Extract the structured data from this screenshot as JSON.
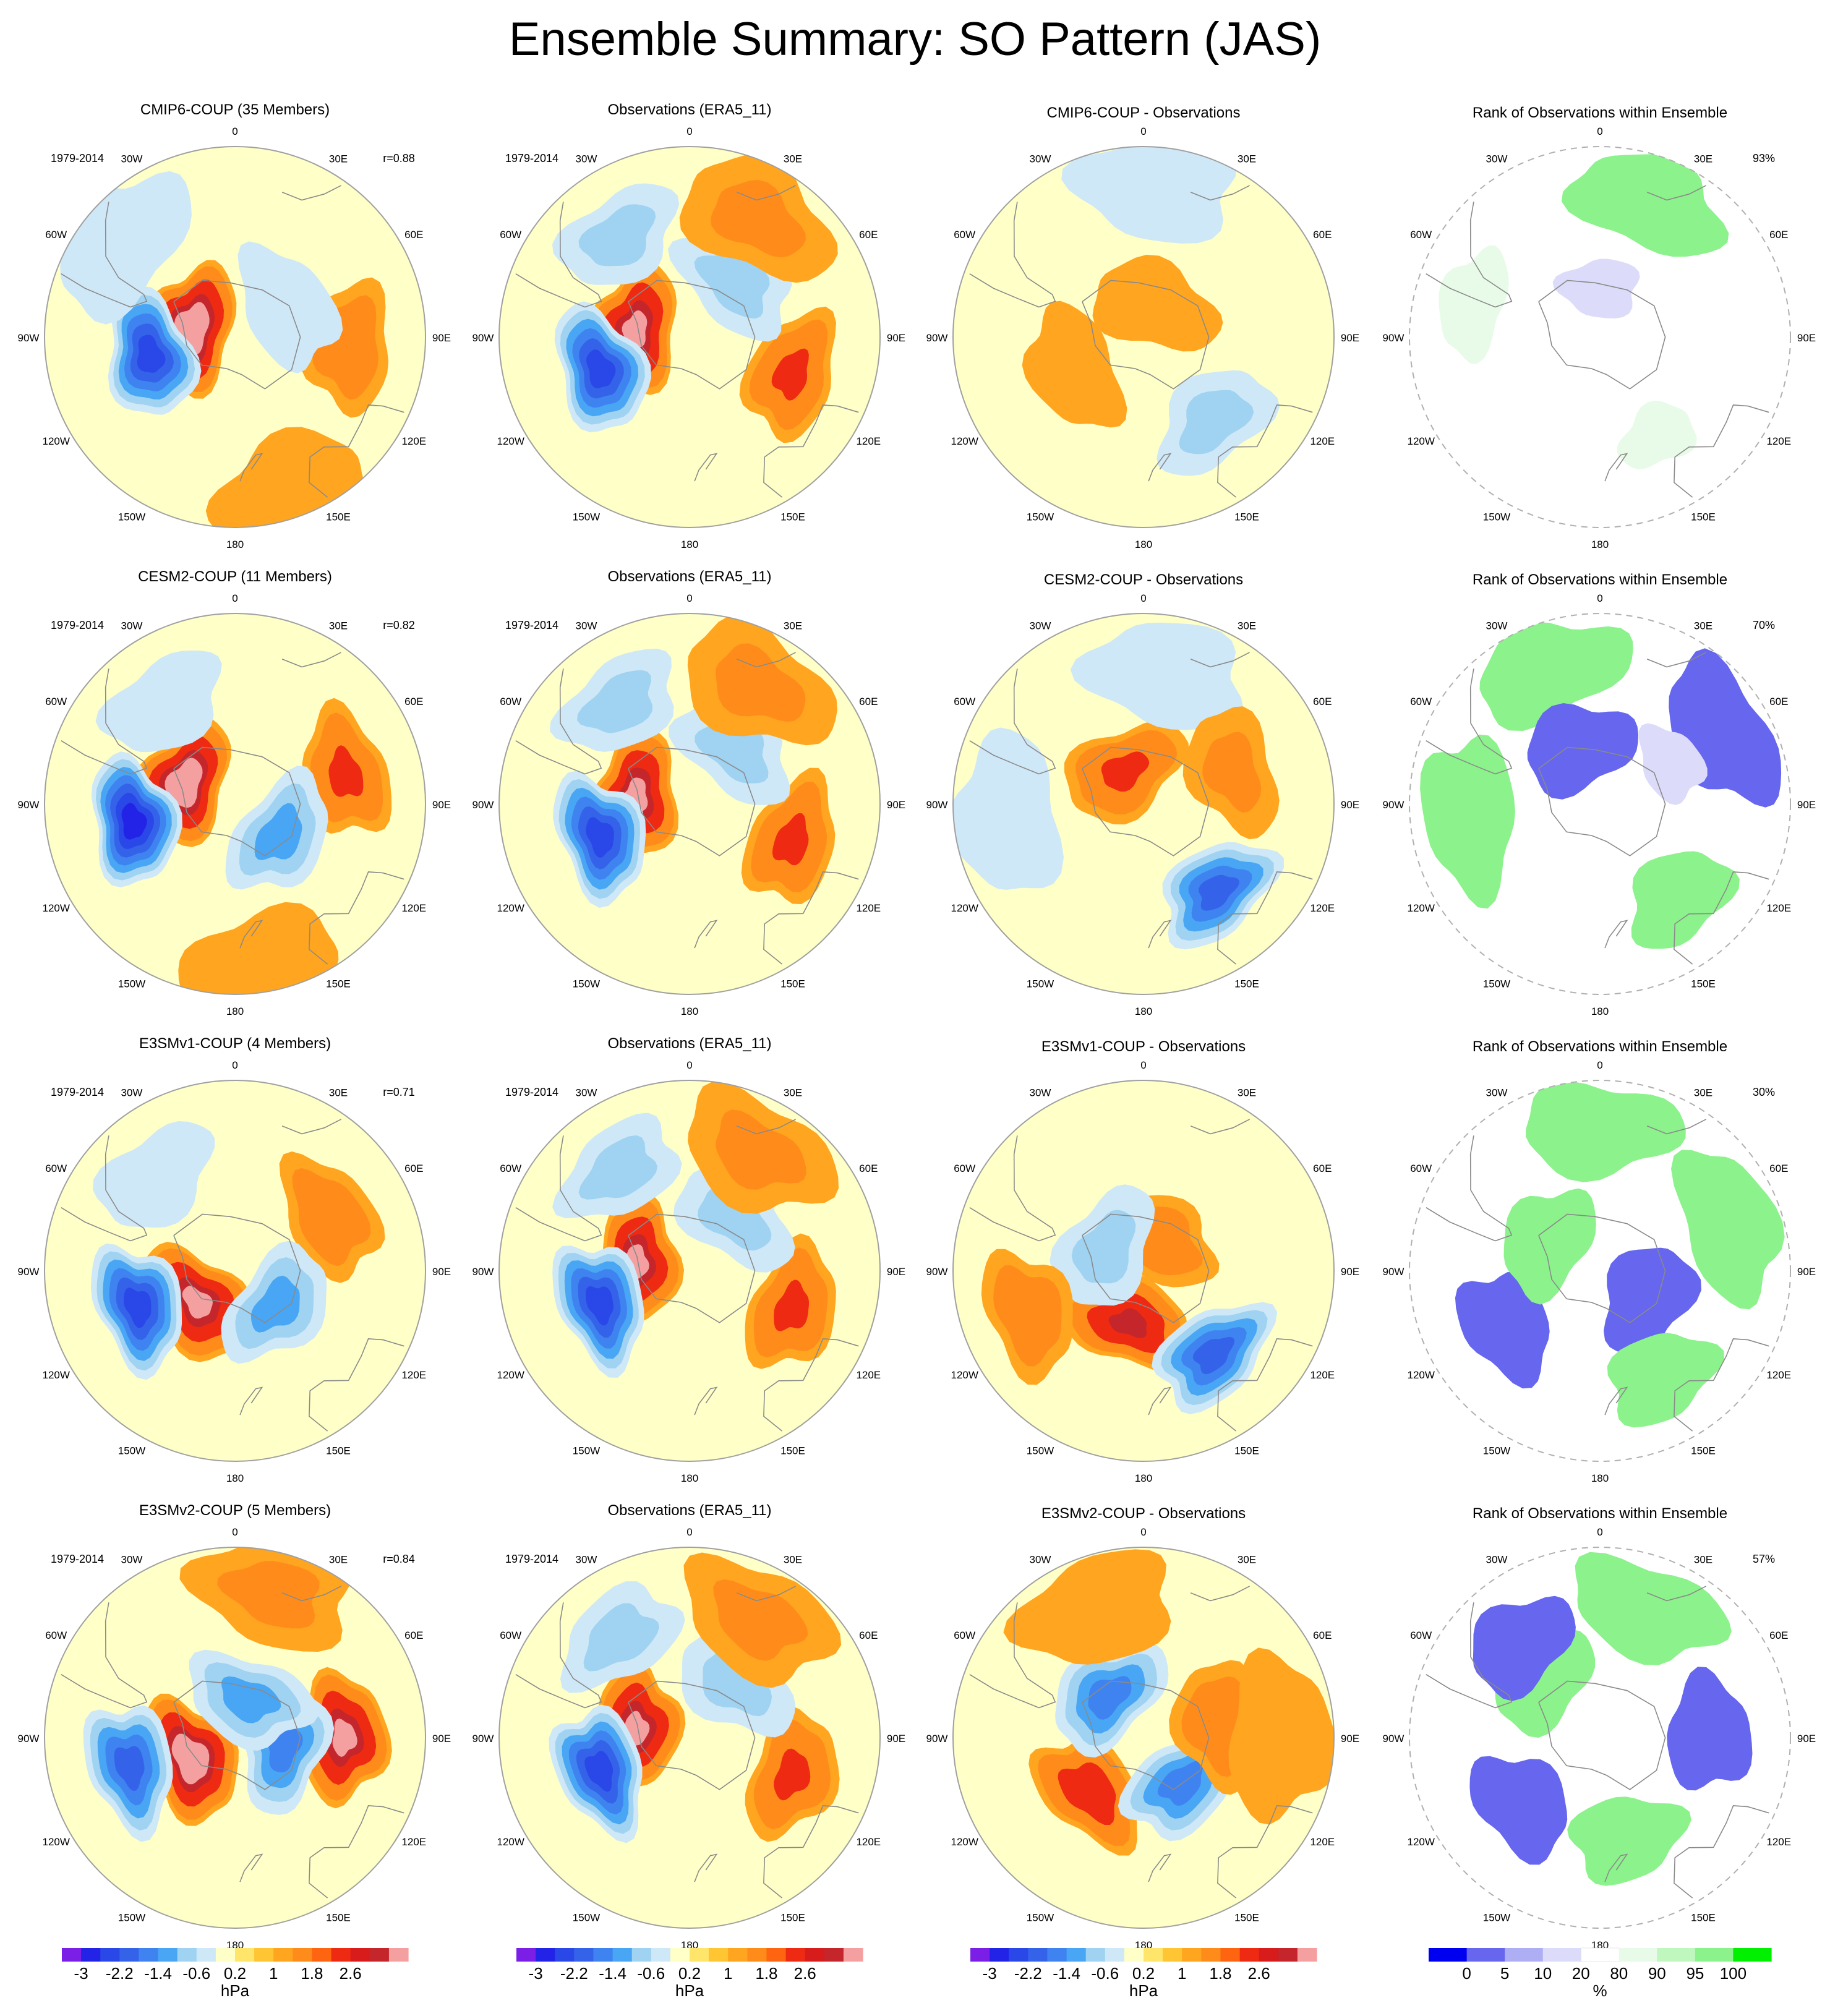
{
  "page": {
    "title": "Ensemble Summary: SO Pattern (JAS)"
  },
  "lon_labels": [
    "0",
    "30E",
    "60E",
    "90E",
    "120E",
    "150E",
    "180",
    "150W",
    "120W",
    "90W",
    "60W",
    "30W"
  ],
  "rows": [
    {
      "model": "CMIP6-COUP",
      "panels": [
        {
          "kind": "ensemble",
          "title": "CMIP6-COUP (35 Members)",
          "left_note": "1979-2014",
          "right_note": "r=0.88",
          "anomalies": [
            {
              "lat": -74,
              "lon": -78,
              "value": 3.0
            },
            {
              "lat": -58,
              "lon": -102,
              "value": -2.4
            },
            {
              "lat": -48,
              "lon": 95,
              "value": 1.3
            },
            {
              "lat": -68,
              "lon": 60,
              "value": -0.4
            },
            {
              "lat": -36,
              "lon": -50,
              "value": -0.5
            },
            {
              "lat": -30,
              "lon": 160,
              "value": 0.6
            }
          ]
        },
        {
          "kind": "obs",
          "title": "Observations (ERA5_11)",
          "left_note": "1979-2014",
          "right_note": "",
          "anomalies": [
            {
              "lat": -70,
              "lon": -82,
              "value": 2.8
            },
            {
              "lat": -55,
              "lon": -110,
              "value": -2.5
            },
            {
              "lat": -50,
              "lon": 110,
              "value": 1.5
            },
            {
              "lat": -64,
              "lon": 40,
              "value": -0.9
            },
            {
              "lat": -40,
              "lon": 30,
              "value": 0.9
            },
            {
              "lat": -45,
              "lon": -35,
              "value": -0.8
            }
          ]
        },
        {
          "kind": "diff",
          "title": "CMIP6-COUP - Observations",
          "anomalies": [
            {
              "lat": -78,
              "lon": 20,
              "value": 0.6
            },
            {
              "lat": -50,
              "lon": 140,
              "value": -0.9
            },
            {
              "lat": -35,
              "lon": 5,
              "value": -0.4
            },
            {
              "lat": -62,
              "lon": -115,
              "value": 0.5
            }
          ]
        },
        {
          "kind": "rank",
          "title": "Rank of Observations within Ensemble",
          "right_note": "93%",
          "blobs": [
            {
              "lat": -38,
              "lon": 20,
              "value": 97
            },
            {
              "lat": -48,
              "lon": 150,
              "value": 85
            },
            {
              "lat": -72,
              "lon": 0,
              "value": 15
            },
            {
              "lat": -42,
              "lon": -75,
              "value": 85
            }
          ]
        }
      ]
    },
    {
      "model": "CESM2-COUP",
      "panels": [
        {
          "kind": "ensemble",
          "title": "CESM2-COUP (11 Members)",
          "left_note": "1979-2014",
          "right_note": "r=0.82",
          "anomalies": [
            {
              "lat": -70,
              "lon": -68,
              "value": 3.2
            },
            {
              "lat": -52,
              "lon": -100,
              "value": -2.8
            },
            {
              "lat": -48,
              "lon": 75,
              "value": 1.6
            },
            {
              "lat": -70,
              "lon": 125,
              "value": -1.4
            },
            {
              "lat": -30,
              "lon": 170,
              "value": 0.6
            },
            {
              "lat": -45,
              "lon": -35,
              "value": -0.5
            }
          ]
        },
        {
          "kind": "obs",
          "title": "Observations (ERA5_11)",
          "left_note": "1979-2014",
          "right_note": "",
          "anomalies": [
            {
              "lat": -70,
              "lon": -82,
              "value": 2.8
            },
            {
              "lat": -55,
              "lon": -110,
              "value": -2.5
            },
            {
              "lat": -50,
              "lon": 110,
              "value": 1.5
            },
            {
              "lat": -64,
              "lon": 40,
              "value": -0.9
            },
            {
              "lat": -40,
              "lon": 30,
              "value": 0.9
            },
            {
              "lat": -45,
              "lon": -35,
              "value": -0.8
            }
          ]
        },
        {
          "kind": "diff",
          "title": "CESM2-COUP - Observations",
          "anomalies": [
            {
              "lat": -76,
              "lon": -30,
              "value": 1.6
            },
            {
              "lat": -48,
              "lon": 140,
              "value": -1.9
            },
            {
              "lat": -42,
              "lon": 10,
              "value": -0.6
            },
            {
              "lat": -40,
              "lon": -95,
              "value": -0.5
            },
            {
              "lat": -55,
              "lon": 70,
              "value": 0.7
            }
          ]
        },
        {
          "kind": "rank",
          "title": "Rank of Observations within Ensemble",
          "right_note": "70%",
          "blobs": [
            {
              "lat": -38,
              "lon": -20,
              "value": 97
            },
            {
              "lat": -45,
              "lon": 140,
              "value": 97
            },
            {
              "lat": -42,
              "lon": -95,
              "value": 97
            },
            {
              "lat": -68,
              "lon": -20,
              "value": 2
            },
            {
              "lat": -38,
              "lon": 60,
              "value": 2
            },
            {
              "lat": -60,
              "lon": 60,
              "value": 15
            }
          ]
        }
      ]
    },
    {
      "model": "E3SMv1-COUP",
      "panels": [
        {
          "kind": "ensemble",
          "title": "E3SMv1-COUP (4 Members)",
          "left_note": "1979-2014",
          "right_note": "r=0.71",
          "anomalies": [
            {
              "lat": -72,
              "lon": -130,
              "value": 2.6
            },
            {
              "lat": -52,
              "lon": -110,
              "value": -2.2
            },
            {
              "lat": -50,
              "lon": 60,
              "value": 1.2
            },
            {
              "lat": -70,
              "lon": 130,
              "value": -1.4
            },
            {
              "lat": -45,
              "lon": -40,
              "value": -0.6
            }
          ]
        },
        {
          "kind": "obs",
          "title": "Observations (ERA5_11)",
          "left_note": "1979-2014",
          "right_note": "",
          "anomalies": [
            {
              "lat": -70,
              "lon": -82,
              "value": 2.8
            },
            {
              "lat": -55,
              "lon": -110,
              "value": -2.5
            },
            {
              "lat": -50,
              "lon": 110,
              "value": 1.5
            },
            {
              "lat": -64,
              "lon": 40,
              "value": -0.9
            },
            {
              "lat": -40,
              "lon": 30,
              "value": 0.9
            },
            {
              "lat": -45,
              "lon": -35,
              "value": -0.8
            }
          ]
        },
        {
          "kind": "diff",
          "title": "E3SMv1-COUP - Observations",
          "anomalies": [
            {
              "lat": -70,
              "lon": -165,
              "value": 2.4
            },
            {
              "lat": -50,
              "lon": 140,
              "value": -2.0
            },
            {
              "lat": -78,
              "lon": 20,
              "value": 1.4
            },
            {
              "lat": -74,
              "lon": -60,
              "value": -0.8
            },
            {
              "lat": -45,
              "lon": -110,
              "value": 1.0
            }
          ]
        },
        {
          "kind": "rank",
          "title": "Rank of Observations within Ensemble",
          "right_note": "30%",
          "blobs": [
            {
              "lat": -70,
              "lon": 120,
              "value": 2
            },
            {
              "lat": -50,
              "lon": -120,
              "value": 2
            },
            {
              "lat": -40,
              "lon": 70,
              "value": 97
            },
            {
              "lat": -38,
              "lon": 0,
              "value": 97
            },
            {
              "lat": -45,
              "lon": 150,
              "value": 97
            },
            {
              "lat": -68,
              "lon": -60,
              "value": 97
            }
          ]
        }
      ]
    },
    {
      "model": "E3SMv2-COUP",
      "panels": [
        {
          "kind": "ensemble",
          "title": "E3SMv2-COUP (5 Members)",
          "left_note": "1979-2014",
          "right_note": "r=0.84",
          "anomalies": [
            {
              "lat": -72,
              "lon": -115,
              "value": 3.0
            },
            {
              "lat": -50,
              "lon": -105,
              "value": -2.0
            },
            {
              "lat": -50,
              "lon": 90,
              "value": 2.8
            },
            {
              "lat": -72,
              "lon": 100,
              "value": -1.5
            },
            {
              "lat": -75,
              "lon": 20,
              "value": -1.0
            },
            {
              "lat": -35,
              "lon": 15,
              "value": 0.8
            }
          ]
        },
        {
          "kind": "obs",
          "title": "Observations (ERA5_11)",
          "left_note": "1979-2014",
          "right_note": "",
          "anomalies": [
            {
              "lat": -70,
              "lon": -82,
              "value": 2.8
            },
            {
              "lat": -55,
              "lon": -110,
              "value": -2.5
            },
            {
              "lat": -50,
              "lon": 110,
              "value": 1.5
            },
            {
              "lat": -64,
              "lon": 40,
              "value": -0.9
            },
            {
              "lat": -40,
              "lon": 30,
              "value": 0.9
            },
            {
              "lat": -45,
              "lon": -35,
              "value": -0.8
            }
          ]
        },
        {
          "kind": "diff",
          "title": "E3SMv2-COUP - Observations",
          "anomalies": [
            {
              "lat": -62,
              "lon": -135,
              "value": 1.8
            },
            {
              "lat": -68,
              "lon": 140,
              "value": -1.6
            },
            {
              "lat": -70,
              "lon": -40,
              "value": -1.5
            },
            {
              "lat": -62,
              "lon": 80,
              "value": 1.4
            },
            {
              "lat": -40,
              "lon": -20,
              "value": 0.6
            },
            {
              "lat": -40,
              "lon": 90,
              "value": 0.5
            }
          ]
        },
        {
          "kind": "rank",
          "title": "Rank of Observations within Ensemble",
          "right_note": "57%",
          "blobs": [
            {
              "lat": -40,
              "lon": 20,
              "value": 97
            },
            {
              "lat": -52,
              "lon": 165,
              "value": 97
            },
            {
              "lat": -60,
              "lon": -45,
              "value": 97
            },
            {
              "lat": -52,
              "lon": -130,
              "value": 2
            },
            {
              "lat": -50,
              "lon": 88,
              "value": 2
            },
            {
              "lat": -45,
              "lon": -40,
              "value": 2
            }
          ]
        }
      ]
    }
  ],
  "colorbars": {
    "anomaly": {
      "unit": "hPa",
      "colors": [
        "#7b1fe6",
        "#2323e8",
        "#2a47e8",
        "#3463ea",
        "#3f83f0",
        "#48a6f4",
        "#9fd3f1",
        "#cfe8f7",
        "#ffffc8",
        "#ffe56a",
        "#ffc533",
        "#ffa51f",
        "#ff8c1a",
        "#ff6511",
        "#ef2a12",
        "#d81b1b",
        "#c4262b",
        "#f5a0a0"
      ],
      "tick_labels": [
        "-3",
        "-2.2",
        "-1.4",
        "-0.6",
        "0.2",
        "1",
        "1.8",
        "2.6"
      ],
      "tick_edges": [
        1,
        3,
        5,
        7,
        9,
        11,
        13,
        15
      ]
    },
    "rank": {
      "unit": "%",
      "colors": [
        "#0000f0",
        "#6666ee",
        "#aeaef5",
        "#dcdcfa",
        "#ffffff",
        "#e8fbe8",
        "#bff7bf",
        "#8cf28c",
        "#00f000"
      ],
      "tick_labels": [
        "0",
        "5",
        "10",
        "20",
        "80",
        "90",
        "95",
        "100"
      ],
      "tick_edges": [
        1,
        2,
        3,
        4,
        5,
        6,
        7,
        8
      ]
    }
  }
}
